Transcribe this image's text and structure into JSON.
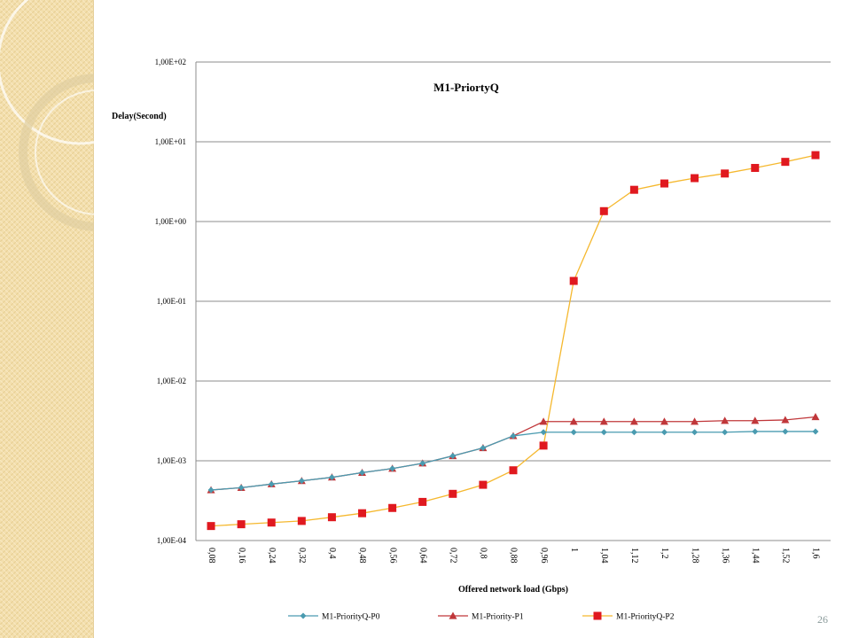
{
  "slide": {
    "page_number": "26"
  },
  "chart_data": {
    "type": "line",
    "title": "M1-PriortyQ",
    "xlabel": "Offered network load (Gbps)",
    "ylabel": "Delay(Second)",
    "y_scale": "log",
    "ylim": [
      0.0001,
      100
    ],
    "grid": true,
    "legend_position": "bottom",
    "categories": [
      "0,08",
      "0,16",
      "0,24",
      "0,32",
      "0,4",
      "0,48",
      "0,56",
      "0,64",
      "0,72",
      "0,8",
      "0,88",
      "0,96",
      "1",
      "1,04",
      "1,12",
      "1,2",
      "1,28",
      "1,36",
      "1,44",
      "1,52",
      "1,6"
    ],
    "y_tick_labels": [
      "1,00E-04",
      "1,00E-03",
      "1,00E-02",
      "1,00E-01",
      "1,00E+00",
      "1,00E+01",
      "1,00E+02"
    ],
    "y_tick_values": [
      0.0001,
      0.001,
      0.01,
      0.1,
      1,
      10,
      100
    ],
    "series": [
      {
        "name": "M1-PriorityQ-P0",
        "color": "#4a9bb0",
        "marker": "diamond",
        "values": [
          0.00043,
          0.00046,
          0.00051,
          0.00056,
          0.00062,
          0.00071,
          0.0008,
          0.00093,
          0.00115,
          0.00145,
          0.00205,
          0.00228,
          0.00228,
          0.00228,
          0.00228,
          0.00228,
          0.00228,
          0.00228,
          0.00233,
          0.00233,
          0.00233
        ]
      },
      {
        "name": "M1-Priority-P1",
        "color": "#c0373a",
        "marker": "triangle",
        "values": [
          0.00043,
          0.00046,
          0.00051,
          0.00056,
          0.00062,
          0.00071,
          0.0008,
          0.00093,
          0.00115,
          0.00145,
          0.00205,
          0.0031,
          0.0031,
          0.0031,
          0.0031,
          0.0031,
          0.0031,
          0.00318,
          0.00318,
          0.00325,
          0.00355
        ]
      },
      {
        "name": "M1-PriorityQ-P2",
        "color": "#f5b82e",
        "marker": "square",
        "marker_color": "#e0191f",
        "values": [
          0.000152,
          0.00016,
          0.000168,
          0.000176,
          0.000196,
          0.00022,
          0.000256,
          0.000305,
          0.000385,
          0.0005,
          0.00076,
          0.00155,
          0.18,
          1.35,
          2.5,
          3.0,
          3.5,
          4.0,
          4.7,
          5.6,
          6.8
        ]
      }
    ]
  }
}
